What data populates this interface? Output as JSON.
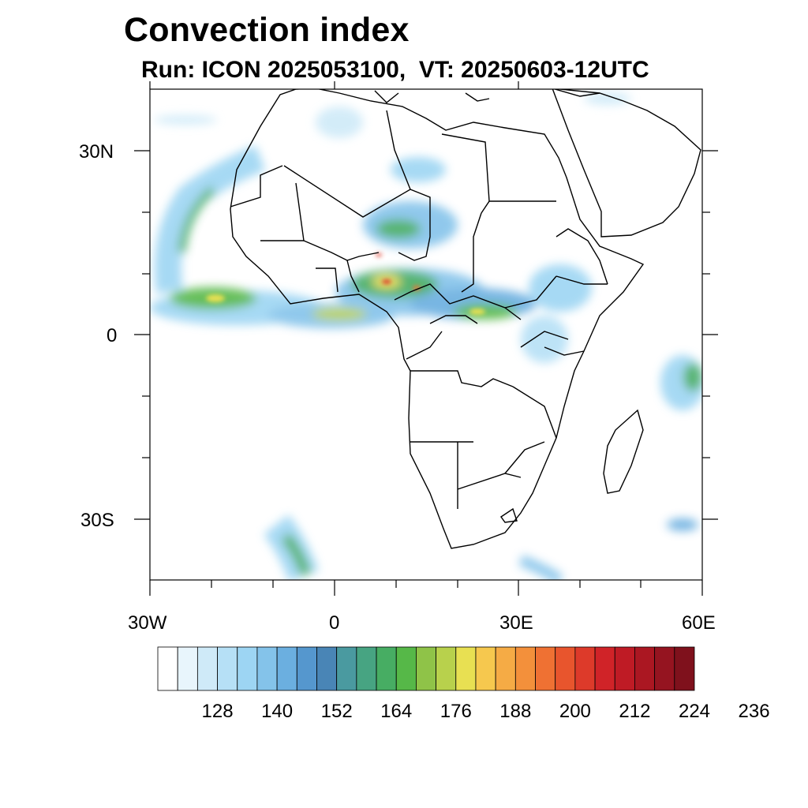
{
  "header": {
    "title": "Convection index",
    "subtitle": "Run: ICON 2025053100,  VT: 20250603-12UTC"
  },
  "map": {
    "region": "Africa",
    "lon_range": [
      -30,
      60
    ],
    "lat_range": [
      -40,
      40
    ],
    "lon_ticks": [
      "30W",
      "0",
      "30E",
      "60E"
    ],
    "lat_ticks": [
      "30N",
      "0",
      "30S"
    ]
  },
  "colorbar": {
    "tick_labels": [
      "128",
      "140",
      "152",
      "164",
      "176",
      "188",
      "200",
      "212",
      "224",
      "236"
    ],
    "colors": [
      "#ffffff",
      "#e8f5fc",
      "#cfeaf8",
      "#b6e0f6",
      "#9dd5f3",
      "#84c3ea",
      "#6bafe0",
      "#5597ce",
      "#4985b6",
      "#4a9aa0",
      "#47a482",
      "#47ad63",
      "#56b848",
      "#8fc348",
      "#b8d14c",
      "#e8e052",
      "#f6c84e",
      "#f5ab45",
      "#f3903b",
      "#ef7133",
      "#e8552d",
      "#dd3a2a",
      "#d02328",
      "#bf1b25",
      "#ab1722",
      "#951420",
      "#7f111c"
    ]
  }
}
